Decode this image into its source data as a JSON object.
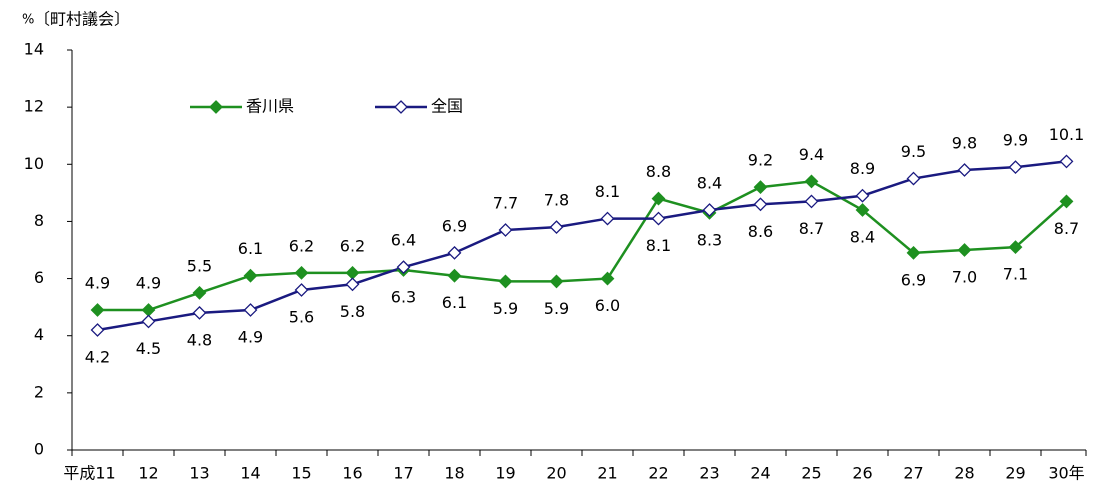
{
  "chart_data": {
    "type": "line",
    "title": "〔町村議会〕",
    "y_label": "%",
    "categories": [
      "平成11",
      "12",
      "13",
      "14",
      "15",
      "16",
      "17",
      "18",
      "19",
      "20",
      "21",
      "22",
      "23",
      "24",
      "25",
      "26",
      "27",
      "28",
      "29",
      "30年"
    ],
    "series": [
      {
        "name": "香川県",
        "color": "#1e9020",
        "marker": "diamond-filled",
        "values": [
          4.9,
          4.9,
          5.5,
          6.1,
          6.2,
          6.2,
          6.3,
          6.1,
          5.9,
          5.9,
          6.0,
          8.8,
          8.3,
          9.2,
          9.4,
          8.4,
          6.9,
          7.0,
          7.1,
          8.7
        ],
        "value_labels": [
          "4.9",
          "4.9",
          "5.5",
          "6.1",
          "6.2",
          "6.2",
          "6.3",
          "6.1",
          "5.9",
          "5.9",
          "6.0",
          "8.8",
          "8.3",
          "9.2",
          "9.4",
          "8.4",
          "6.9",
          "7.0",
          "7.1",
          "8.7"
        ]
      },
      {
        "name": "全国",
        "color": "#1a1a80",
        "marker": "diamond-open",
        "values": [
          4.2,
          4.5,
          4.8,
          4.9,
          5.6,
          5.8,
          6.4,
          6.9,
          7.7,
          7.8,
          8.1,
          8.1,
          8.4,
          8.6,
          8.7,
          8.9,
          9.5,
          9.8,
          9.9,
          10.1
        ],
        "value_labels": [
          "4.2",
          "4.5",
          "4.8",
          "4.9",
          "5.6",
          "5.8",
          "6.4",
          "6.9",
          "7.7",
          "7.8",
          "8.1",
          "8.1",
          "8.4",
          "8.6",
          "8.7",
          "8.9",
          "9.5",
          "9.8",
          "9.9",
          "10.1"
        ]
      }
    ],
    "ylim": [
      0,
      14
    ],
    "yticks": [
      0,
      2,
      4,
      6,
      8,
      10,
      12,
      14
    ],
    "grid": false,
    "legend": "top-left"
  }
}
